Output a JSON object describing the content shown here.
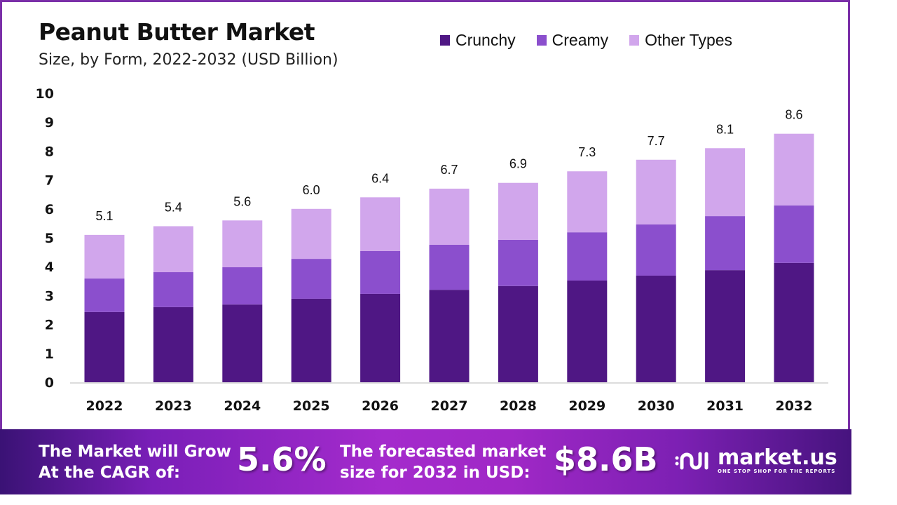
{
  "header": {
    "title": "Peanut Butter Market",
    "subtitle": "Size, by Form, 2022-2032 (USD Billion)"
  },
  "chart_data": {
    "type": "bar",
    "stacked": true,
    "title": "Peanut Butter Market",
    "subtitle": "Size, by Form, 2022-2032 (USD Billion)",
    "xlabel": "",
    "ylabel": "",
    "ylim": [
      0,
      10
    ],
    "yticks": [
      "0",
      "1",
      "2",
      "3",
      "4",
      "5",
      "6",
      "7",
      "8",
      "9",
      "10"
    ],
    "grid": false,
    "legend_position": "top-right",
    "categories": [
      "2022",
      "2023",
      "2024",
      "2025",
      "2026",
      "2027",
      "2028",
      "2029",
      "2030",
      "2031",
      "2032"
    ],
    "series": [
      {
        "name": "Crunchy",
        "color": "#4f1784",
        "values": [
          2.43,
          2.6,
          2.69,
          2.89,
          3.06,
          3.2,
          3.33,
          3.52,
          3.69,
          3.88,
          4.13
        ]
      },
      {
        "name": "Creamy",
        "color": "#8b4fcd",
        "values": [
          1.16,
          1.21,
          1.29,
          1.38,
          1.48,
          1.56,
          1.6,
          1.67,
          1.77,
          1.87,
          1.99
        ]
      },
      {
        "name": "Other Types",
        "color": "#d1a6ec",
        "values": [
          1.51,
          1.59,
          1.62,
          1.73,
          1.86,
          1.94,
          1.97,
          2.11,
          2.24,
          2.35,
          2.48
        ]
      }
    ],
    "totals": [
      "5.1",
      "5.4",
      "5.6",
      "6.0",
      "6.4",
      "6.7",
      "6.9",
      "7.3",
      "7.7",
      "8.1",
      "8.6"
    ]
  },
  "footer": {
    "cagr_text_line1": "The Market will Grow",
    "cagr_text_line2": "At the CAGR of:",
    "cagr_value": "5.6%",
    "forecast_text_line1": "The forecasted market",
    "forecast_text_line2": "size for 2032 in USD:",
    "forecast_value": "$8.6B",
    "brand_name": "market.us",
    "brand_tagline": "ONE STOP SHOP FOR THE REPORTS"
  }
}
